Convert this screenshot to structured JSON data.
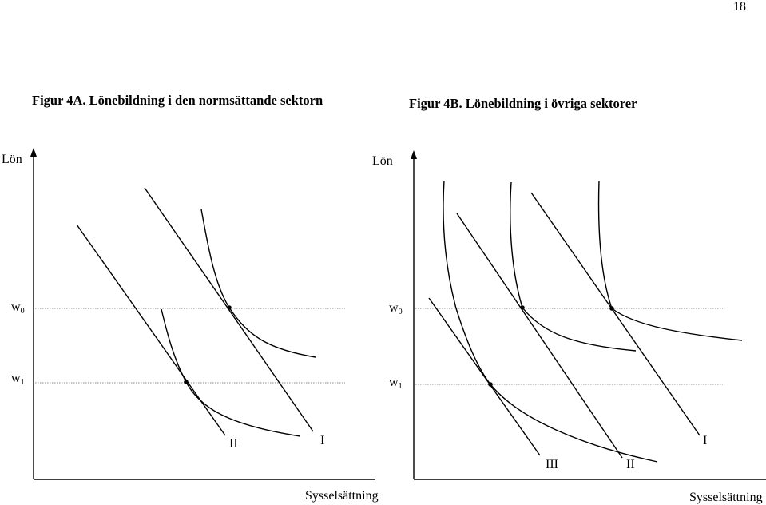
{
  "page_number": "18",
  "figure_a": {
    "title": "Figur 4A. Lönebildning i den normsättande sektorn",
    "y_axis_label": "Lön",
    "x_axis_label": "Sysselsättning",
    "w0": {
      "base": "w",
      "sub": "0"
    },
    "w1": {
      "base": "w",
      "sub": "1"
    },
    "curve_labels": [
      "II",
      "I"
    ]
  },
  "figure_b": {
    "title": "Figur 4B. Lönebildning i övriga sektorer",
    "y_axis_label": "Lön",
    "x_axis_label": "Sysselsättning",
    "w0": {
      "base": "w",
      "sub": "0"
    },
    "w1": {
      "base": "w",
      "sub": "1"
    },
    "curve_labels": [
      "III",
      "II",
      "I"
    ]
  }
}
